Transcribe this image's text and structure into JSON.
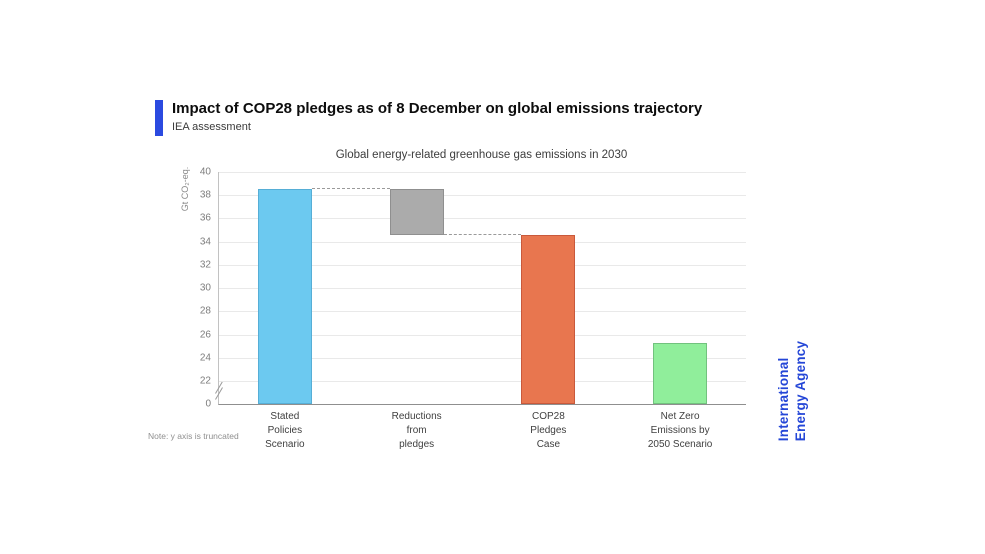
{
  "header": {
    "title": "Impact of COP28 pledges as of 8 December on global emissions trajectory",
    "subtitle": "IEA assessment",
    "accent_color": "#2b4ae0"
  },
  "note": "Note: y axis is truncated",
  "wordmark": {
    "text": "International\nEnergy Agency",
    "color": "#2446d7"
  },
  "chart_data": {
    "type": "bar",
    "title": "Global energy-related greenhouse gas emissions in 2030",
    "ylabel": "Gt CO₂-eq.",
    "xlabel": "",
    "grid": true,
    "legend": "none",
    "y_axis": {
      "ymax": 40,
      "truncated_below": 22,
      "truncated": true,
      "yticks": [
        40,
        38,
        36,
        34,
        32,
        30,
        28,
        26,
        24,
        22,
        0
      ]
    },
    "categories": [
      "Stated\nPolicies\nScenario",
      "Reductions\nfrom\npledges",
      "COP28\nPledges\nCase",
      "Net Zero\nEmissions by\n2050 Scenario"
    ],
    "bars": [
      {
        "name": "Stated Policies Scenario",
        "from": 0,
        "to": 38.5,
        "color": "#6cc9f0",
        "border": "#56aed6"
      },
      {
        "name": "Reductions from pledges",
        "from": 34.6,
        "to": 38.5,
        "color": "#ababab",
        "border": "#8f8f8f"
      },
      {
        "name": "COP28 Pledges Case",
        "from": 0,
        "to": 34.6,
        "color": "#e8764f",
        "border": "#c9593b"
      },
      {
        "name": "Net Zero Emissions by 2050 Scenario",
        "from": 0,
        "to": 25.3,
        "color": "#90ee9b",
        "border": "#72c27e"
      }
    ],
    "connectors": [
      {
        "value": 38.5,
        "from_bar": 0,
        "to_bar": 1
      },
      {
        "value": 34.6,
        "from_bar": 1,
        "to_bar": 2
      }
    ],
    "connector_color": "#9a9a9a"
  }
}
